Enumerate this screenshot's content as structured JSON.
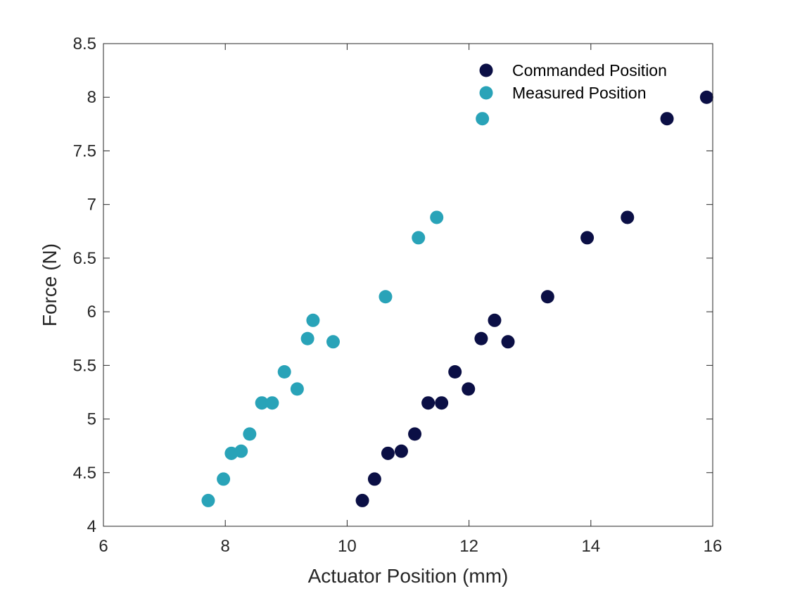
{
  "chart_data": {
    "type": "scatter",
    "title": "",
    "xlabel": "Actuator Position (mm)",
    "ylabel": "Force (N)",
    "xlim": [
      6,
      16
    ],
    "ylim": [
      4,
      8.5
    ],
    "xticks": [
      6,
      8,
      10,
      12,
      14,
      16
    ],
    "xtick_labels": [
      "6",
      "8",
      "10",
      "12",
      "14",
      "16"
    ],
    "yticks": [
      4,
      4.5,
      5,
      5.5,
      6,
      6.5,
      7,
      7.5,
      8,
      8.5
    ],
    "ytick_labels": [
      "4",
      "4.5",
      "5",
      "5.5",
      "6",
      "6.5",
      "7",
      "7.5",
      "8",
      "8.5"
    ],
    "grid": false,
    "legend_position": "top-right",
    "series": [
      {
        "name": "Commanded Position",
        "color": "#0b0f45",
        "points": [
          [
            10.25,
            4.24
          ],
          [
            10.45,
            4.44
          ],
          [
            10.67,
            4.68
          ],
          [
            10.89,
            4.7
          ],
          [
            11.11,
            4.86
          ],
          [
            11.33,
            5.15
          ],
          [
            11.55,
            5.15
          ],
          [
            11.77,
            5.44
          ],
          [
            11.99,
            5.28
          ],
          [
            12.2,
            5.75
          ],
          [
            12.42,
            5.92
          ],
          [
            12.64,
            5.72
          ],
          [
            13.29,
            6.14
          ],
          [
            13.94,
            6.69
          ],
          [
            14.6,
            6.88
          ],
          [
            15.25,
            7.8
          ],
          [
            15.9,
            8.0
          ]
        ]
      },
      {
        "name": "Measured Position",
        "color": "#29a3b8",
        "points": [
          [
            7.72,
            4.24
          ],
          [
            7.97,
            4.44
          ],
          [
            8.1,
            4.68
          ],
          [
            8.26,
            4.7
          ],
          [
            8.4,
            4.86
          ],
          [
            8.6,
            5.15
          ],
          [
            8.77,
            5.15
          ],
          [
            8.97,
            5.44
          ],
          [
            9.18,
            5.28
          ],
          [
            9.35,
            5.75
          ],
          [
            9.44,
            5.92
          ],
          [
            9.77,
            5.72
          ],
          [
            10.63,
            6.14
          ],
          [
            11.17,
            6.69
          ],
          [
            11.47,
            6.88
          ],
          [
            12.22,
            7.8
          ]
        ]
      }
    ]
  }
}
